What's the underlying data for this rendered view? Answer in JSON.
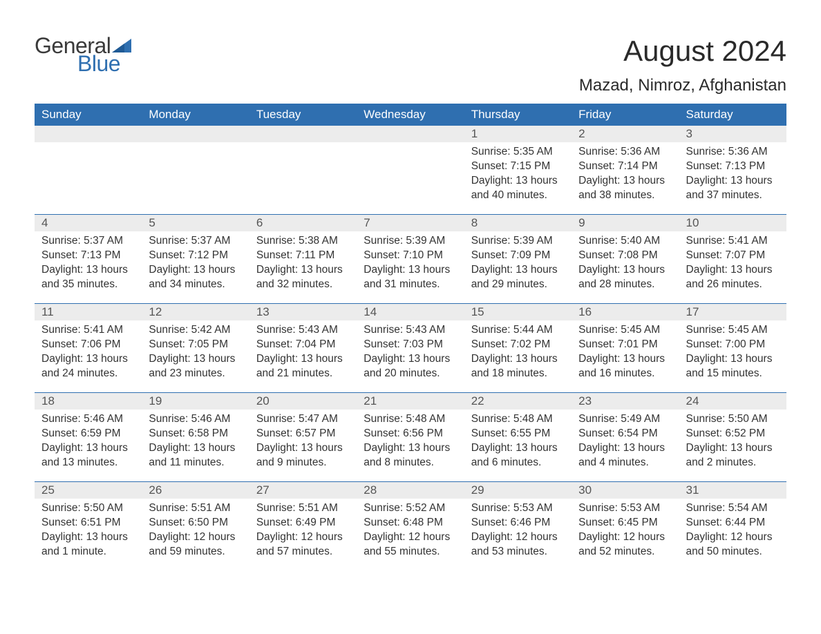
{
  "brand": {
    "word1": "General",
    "word2": "Blue",
    "text_color": "#3a3a3a",
    "accent_color": "#2f6fb0"
  },
  "title": "August 2024",
  "location": "Mazad, Nimroz, Afghanistan",
  "colors": {
    "header_bg": "#2f6fb0",
    "header_text": "#ffffff",
    "daynum_bg": "#ececec",
    "daynum_text": "#555555",
    "body_text": "#333333",
    "row_border": "#2f6fb0",
    "page_bg": "#ffffff"
  },
  "weekdays": [
    "Sunday",
    "Monday",
    "Tuesday",
    "Wednesday",
    "Thursday",
    "Friday",
    "Saturday"
  ],
  "weeks": [
    [
      {
        "empty": true
      },
      {
        "empty": true
      },
      {
        "empty": true
      },
      {
        "empty": true
      },
      {
        "day": "1",
        "sunrise": "Sunrise: 5:35 AM",
        "sunset": "Sunset: 7:15 PM",
        "daylight": "Daylight: 13 hours and 40 minutes."
      },
      {
        "day": "2",
        "sunrise": "Sunrise: 5:36 AM",
        "sunset": "Sunset: 7:14 PM",
        "daylight": "Daylight: 13 hours and 38 minutes."
      },
      {
        "day": "3",
        "sunrise": "Sunrise: 5:36 AM",
        "sunset": "Sunset: 7:13 PM",
        "daylight": "Daylight: 13 hours and 37 minutes."
      }
    ],
    [
      {
        "day": "4",
        "sunrise": "Sunrise: 5:37 AM",
        "sunset": "Sunset: 7:13 PM",
        "daylight": "Daylight: 13 hours and 35 minutes."
      },
      {
        "day": "5",
        "sunrise": "Sunrise: 5:37 AM",
        "sunset": "Sunset: 7:12 PM",
        "daylight": "Daylight: 13 hours and 34 minutes."
      },
      {
        "day": "6",
        "sunrise": "Sunrise: 5:38 AM",
        "sunset": "Sunset: 7:11 PM",
        "daylight": "Daylight: 13 hours and 32 minutes."
      },
      {
        "day": "7",
        "sunrise": "Sunrise: 5:39 AM",
        "sunset": "Sunset: 7:10 PM",
        "daylight": "Daylight: 13 hours and 31 minutes."
      },
      {
        "day": "8",
        "sunrise": "Sunrise: 5:39 AM",
        "sunset": "Sunset: 7:09 PM",
        "daylight": "Daylight: 13 hours and 29 minutes."
      },
      {
        "day": "9",
        "sunrise": "Sunrise: 5:40 AM",
        "sunset": "Sunset: 7:08 PM",
        "daylight": "Daylight: 13 hours and 28 minutes."
      },
      {
        "day": "10",
        "sunrise": "Sunrise: 5:41 AM",
        "sunset": "Sunset: 7:07 PM",
        "daylight": "Daylight: 13 hours and 26 minutes."
      }
    ],
    [
      {
        "day": "11",
        "sunrise": "Sunrise: 5:41 AM",
        "sunset": "Sunset: 7:06 PM",
        "daylight": "Daylight: 13 hours and 24 minutes."
      },
      {
        "day": "12",
        "sunrise": "Sunrise: 5:42 AM",
        "sunset": "Sunset: 7:05 PM",
        "daylight": "Daylight: 13 hours and 23 minutes."
      },
      {
        "day": "13",
        "sunrise": "Sunrise: 5:43 AM",
        "sunset": "Sunset: 7:04 PM",
        "daylight": "Daylight: 13 hours and 21 minutes."
      },
      {
        "day": "14",
        "sunrise": "Sunrise: 5:43 AM",
        "sunset": "Sunset: 7:03 PM",
        "daylight": "Daylight: 13 hours and 20 minutes."
      },
      {
        "day": "15",
        "sunrise": "Sunrise: 5:44 AM",
        "sunset": "Sunset: 7:02 PM",
        "daylight": "Daylight: 13 hours and 18 minutes."
      },
      {
        "day": "16",
        "sunrise": "Sunrise: 5:45 AM",
        "sunset": "Sunset: 7:01 PM",
        "daylight": "Daylight: 13 hours and 16 minutes."
      },
      {
        "day": "17",
        "sunrise": "Sunrise: 5:45 AM",
        "sunset": "Sunset: 7:00 PM",
        "daylight": "Daylight: 13 hours and 15 minutes."
      }
    ],
    [
      {
        "day": "18",
        "sunrise": "Sunrise: 5:46 AM",
        "sunset": "Sunset: 6:59 PM",
        "daylight": "Daylight: 13 hours and 13 minutes."
      },
      {
        "day": "19",
        "sunrise": "Sunrise: 5:46 AM",
        "sunset": "Sunset: 6:58 PM",
        "daylight": "Daylight: 13 hours and 11 minutes."
      },
      {
        "day": "20",
        "sunrise": "Sunrise: 5:47 AM",
        "sunset": "Sunset: 6:57 PM",
        "daylight": "Daylight: 13 hours and 9 minutes."
      },
      {
        "day": "21",
        "sunrise": "Sunrise: 5:48 AM",
        "sunset": "Sunset: 6:56 PM",
        "daylight": "Daylight: 13 hours and 8 minutes."
      },
      {
        "day": "22",
        "sunrise": "Sunrise: 5:48 AM",
        "sunset": "Sunset: 6:55 PM",
        "daylight": "Daylight: 13 hours and 6 minutes."
      },
      {
        "day": "23",
        "sunrise": "Sunrise: 5:49 AM",
        "sunset": "Sunset: 6:54 PM",
        "daylight": "Daylight: 13 hours and 4 minutes."
      },
      {
        "day": "24",
        "sunrise": "Sunrise: 5:50 AM",
        "sunset": "Sunset: 6:52 PM",
        "daylight": "Daylight: 13 hours and 2 minutes."
      }
    ],
    [
      {
        "day": "25",
        "sunrise": "Sunrise: 5:50 AM",
        "sunset": "Sunset: 6:51 PM",
        "daylight": "Daylight: 13 hours and 1 minute."
      },
      {
        "day": "26",
        "sunrise": "Sunrise: 5:51 AM",
        "sunset": "Sunset: 6:50 PM",
        "daylight": "Daylight: 12 hours and 59 minutes."
      },
      {
        "day": "27",
        "sunrise": "Sunrise: 5:51 AM",
        "sunset": "Sunset: 6:49 PM",
        "daylight": "Daylight: 12 hours and 57 minutes."
      },
      {
        "day": "28",
        "sunrise": "Sunrise: 5:52 AM",
        "sunset": "Sunset: 6:48 PM",
        "daylight": "Daylight: 12 hours and 55 minutes."
      },
      {
        "day": "29",
        "sunrise": "Sunrise: 5:53 AM",
        "sunset": "Sunset: 6:46 PM",
        "daylight": "Daylight: 12 hours and 53 minutes."
      },
      {
        "day": "30",
        "sunrise": "Sunrise: 5:53 AM",
        "sunset": "Sunset: 6:45 PM",
        "daylight": "Daylight: 12 hours and 52 minutes."
      },
      {
        "day": "31",
        "sunrise": "Sunrise: 5:54 AM",
        "sunset": "Sunset: 6:44 PM",
        "daylight": "Daylight: 12 hours and 50 minutes."
      }
    ]
  ]
}
